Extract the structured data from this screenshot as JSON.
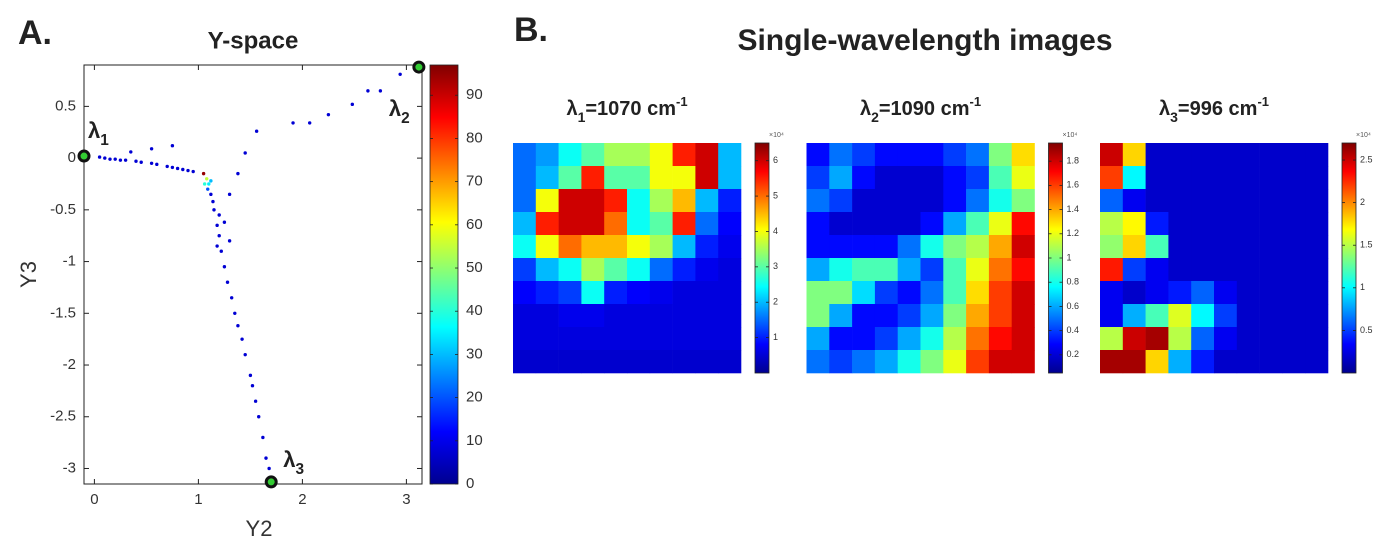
{
  "figure": {
    "panel_labels": [
      "A.",
      "B."
    ],
    "title": "Single-wavelength images"
  },
  "chart_data": [
    {
      "type": "scatter",
      "title": "Y-space",
      "x_label": "Y2",
      "y_label": "Y3",
      "xlim": [
        -0.1,
        3.15
      ],
      "ylim": [
        -3.15,
        0.9
      ],
      "xticks": [
        0,
        1,
        2,
        3
      ],
      "yticks": [
        0.5,
        0,
        -0.5,
        -1,
        -1.5,
        -2,
        -2.5,
        -3
      ],
      "colormap": "jet",
      "clim": [
        0,
        97
      ],
      "cticks": [
        0,
        10,
        20,
        30,
        40,
        50,
        60,
        70,
        80,
        90
      ],
      "x": [
        0.05,
        0.1,
        0.15,
        0.2,
        0.25,
        0.3,
        0.4,
        0.45,
        0.55,
        0.6,
        0.7,
        0.75,
        0.8,
        0.85,
        0.9,
        0.95,
        0.35,
        0.55,
        0.75,
        1.05,
        1.08,
        1.1,
        1.12,
        1.06,
        1.09,
        1.3,
        1.38,
        1.45,
        1.56,
        1.91,
        2.07,
        2.25,
        2.48,
        2.63,
        2.75,
        2.94,
        1.12,
        1.15,
        1.18,
        1.2,
        1.22,
        1.25,
        1.28,
        1.32,
        1.35,
        1.38,
        1.42,
        1.45,
        1.5,
        1.52,
        1.55,
        1.58,
        1.62,
        1.65,
        1.68,
        1.14,
        1.2,
        1.25,
        1.18,
        1.3
      ],
      "y": [
        0.01,
        0,
        -0.01,
        -0.01,
        -0.02,
        -0.02,
        -0.03,
        -0.04,
        -0.05,
        -0.06,
        -0.08,
        -0.09,
        -0.1,
        -0.11,
        -0.12,
        -0.13,
        0.06,
        0.09,
        0.12,
        -0.15,
        -0.2,
        -0.25,
        -0.22,
        -0.25,
        -0.3,
        -0.35,
        -0.15,
        0.05,
        0.26,
        0.34,
        0.34,
        0.42,
        0.52,
        0.65,
        0.65,
        0.81,
        -0.35,
        -0.5,
        -0.65,
        -0.75,
        -0.9,
        -1.05,
        -1.2,
        -1.35,
        -1.5,
        -1.62,
        -1.75,
        -1.9,
        -2.1,
        -2.2,
        -2.35,
        -2.5,
        -2.7,
        -2.9,
        -3.0,
        -0.42,
        -0.55,
        -0.62,
        -0.85,
        -0.8
      ],
      "color_values": [
        8,
        8,
        8,
        8,
        8,
        8,
        8,
        8,
        8,
        8,
        8,
        8,
        8,
        8,
        8,
        8,
        8,
        8,
        8,
        95,
        55,
        35,
        30,
        40,
        20,
        8,
        8,
        8,
        8,
        8,
        8,
        8,
        8,
        8,
        8,
        8,
        8,
        8,
        8,
        8,
        8,
        8,
        8,
        8,
        8,
        8,
        8,
        8,
        8,
        8,
        8,
        8,
        8,
        8,
        8,
        8,
        8,
        8,
        8,
        8
      ],
      "endmembers": {
        "x": [
          -0.1,
          3.12,
          1.7
        ],
        "y": [
          0.02,
          0.88,
          -3.13
        ],
        "labels": [
          {
            "symbol": "λ",
            "index": "1"
          },
          {
            "symbol": "λ",
            "index": "2"
          },
          {
            "symbol": "λ",
            "index": "3"
          }
        ]
      }
    },
    {
      "type": "heatmap",
      "title": {
        "symbol": "λ",
        "index": "1",
        "text": "=1070 cm",
        "exponent": "-1"
      },
      "colormap": "jet",
      "clim": [
        0,
        6.5
      ],
      "cticks": [
        1,
        2,
        3,
        4,
        5,
        6
      ],
      "colorbar_scale_label": "×10⁴",
      "z": [
        [
          1.5,
          1.8,
          2.5,
          3,
          3.5,
          3.5,
          4,
          5.5,
          6,
          2
        ],
        [
          1.5,
          2,
          3,
          5.5,
          3,
          3,
          4,
          4,
          6,
          2
        ],
        [
          1.5,
          4,
          6,
          6,
          5.5,
          2.5,
          3.5,
          4.5,
          2,
          1
        ],
        [
          2,
          5.5,
          6,
          6,
          5,
          2.5,
          3,
          5.5,
          1.5,
          0.8
        ],
        [
          2.5,
          4,
          5,
          4.5,
          4.5,
          4,
          3.5,
          2,
          1,
          0.7
        ],
        [
          1.2,
          2,
          2.5,
          3.5,
          3,
          2.5,
          1.5,
          1,
          0.7,
          0.6
        ],
        [
          0.8,
          1,
          1.2,
          2.5,
          1,
          0.8,
          0.7,
          0.6,
          0.6,
          0.6
        ],
        [
          0.6,
          0.6,
          0.7,
          0.7,
          0.6,
          0.6,
          0.6,
          0.6,
          0.6,
          0.6
        ],
        [
          0.6,
          0.6,
          0.6,
          0.6,
          0.6,
          0.6,
          0.6,
          0.6,
          0.6,
          0.6
        ],
        [
          0.5,
          0.5,
          0.5,
          0.5,
          0.5,
          0.5,
          0.5,
          0.5,
          0.5,
          0.5
        ]
      ]
    },
    {
      "type": "heatmap",
      "title": {
        "symbol": "λ",
        "index": "2",
        "text": "=1090 cm",
        "exponent": "-1"
      },
      "colormap": "jet",
      "clim": [
        0.05,
        1.95
      ],
      "cticks": [
        0.2,
        0.4,
        0.6,
        0.8,
        1,
        1.2,
        1.4,
        1.6,
        1.8
      ],
      "colorbar_scale_label": "×10⁴",
      "z": [
        [
          0.3,
          0.5,
          0.4,
          0.3,
          0.3,
          0.3,
          0.4,
          0.5,
          1.0,
          1.3
        ],
        [
          0.4,
          0.6,
          0.3,
          0.2,
          0.2,
          0.2,
          0.3,
          0.4,
          0.9,
          1.2
        ],
        [
          0.5,
          0.4,
          0.2,
          0.2,
          0.2,
          0.2,
          0.3,
          0.5,
          0.8,
          1.0
        ],
        [
          0.3,
          0.2,
          0.2,
          0.2,
          0.2,
          0.3,
          0.6,
          0.9,
          1.2,
          1.7
        ],
        [
          0.3,
          0.3,
          0.3,
          0.3,
          0.5,
          0.8,
          1.0,
          1.1,
          1.4,
          1.8
        ],
        [
          0.6,
          0.8,
          0.9,
          0.9,
          0.6,
          0.4,
          0.9,
          1.2,
          1.5,
          1.7
        ],
        [
          1.0,
          1.0,
          0.7,
          0.4,
          0.3,
          0.5,
          0.9,
          1.3,
          1.6,
          1.8
        ],
        [
          1.0,
          0.6,
          0.3,
          0.3,
          0.4,
          0.6,
          1.0,
          1.4,
          1.6,
          1.8
        ],
        [
          0.6,
          0.3,
          0.3,
          0.4,
          0.6,
          0.8,
          1.1,
          1.5,
          1.7,
          1.8
        ],
        [
          0.5,
          0.4,
          0.5,
          0.6,
          0.8,
          1.0,
          1.2,
          1.6,
          1.8,
          1.8
        ]
      ]
    },
    {
      "type": "heatmap",
      "title": {
        "symbol": "λ",
        "index": "3",
        "text": "=996 cm",
        "exponent": "-1"
      },
      "colormap": "jet",
      "clim": [
        0,
        2.7
      ],
      "cticks": [
        0.5,
        1,
        1.5,
        2,
        2.5
      ],
      "colorbar_scale_label": "×10⁴",
      "z": [
        [
          2.5,
          1.8,
          0.2,
          0.2,
          0.2,
          0.2,
          0.2,
          0.2,
          0.2,
          0.2
        ],
        [
          2.2,
          1.0,
          0.2,
          0.2,
          0.2,
          0.2,
          0.2,
          0.2,
          0.2,
          0.2
        ],
        [
          0.6,
          0.3,
          0.2,
          0.2,
          0.2,
          0.2,
          0.2,
          0.2,
          0.2,
          0.2
        ],
        [
          1.5,
          1.7,
          0.4,
          0.2,
          0.2,
          0.2,
          0.2,
          0.2,
          0.2,
          0.2
        ],
        [
          1.4,
          1.8,
          1.2,
          0.2,
          0.2,
          0.2,
          0.2,
          0.2,
          0.2,
          0.2
        ],
        [
          2.3,
          0.5,
          0.3,
          0.2,
          0.2,
          0.2,
          0.2,
          0.2,
          0.2,
          0.2
        ],
        [
          0.3,
          0.2,
          0.3,
          0.4,
          0.6,
          0.3,
          0.2,
          0.2,
          0.2,
          0.2
        ],
        [
          0.3,
          0.8,
          1.2,
          1.6,
          1.0,
          0.5,
          0.2,
          0.2,
          0.2,
          0.2
        ],
        [
          1.5,
          2.5,
          2.6,
          1.5,
          0.6,
          0.3,
          0.2,
          0.2,
          0.2,
          0.2
        ],
        [
          2.6,
          2.6,
          1.8,
          0.8,
          0.4,
          0.2,
          0.2,
          0.2,
          0.2,
          0.2
        ]
      ]
    }
  ]
}
